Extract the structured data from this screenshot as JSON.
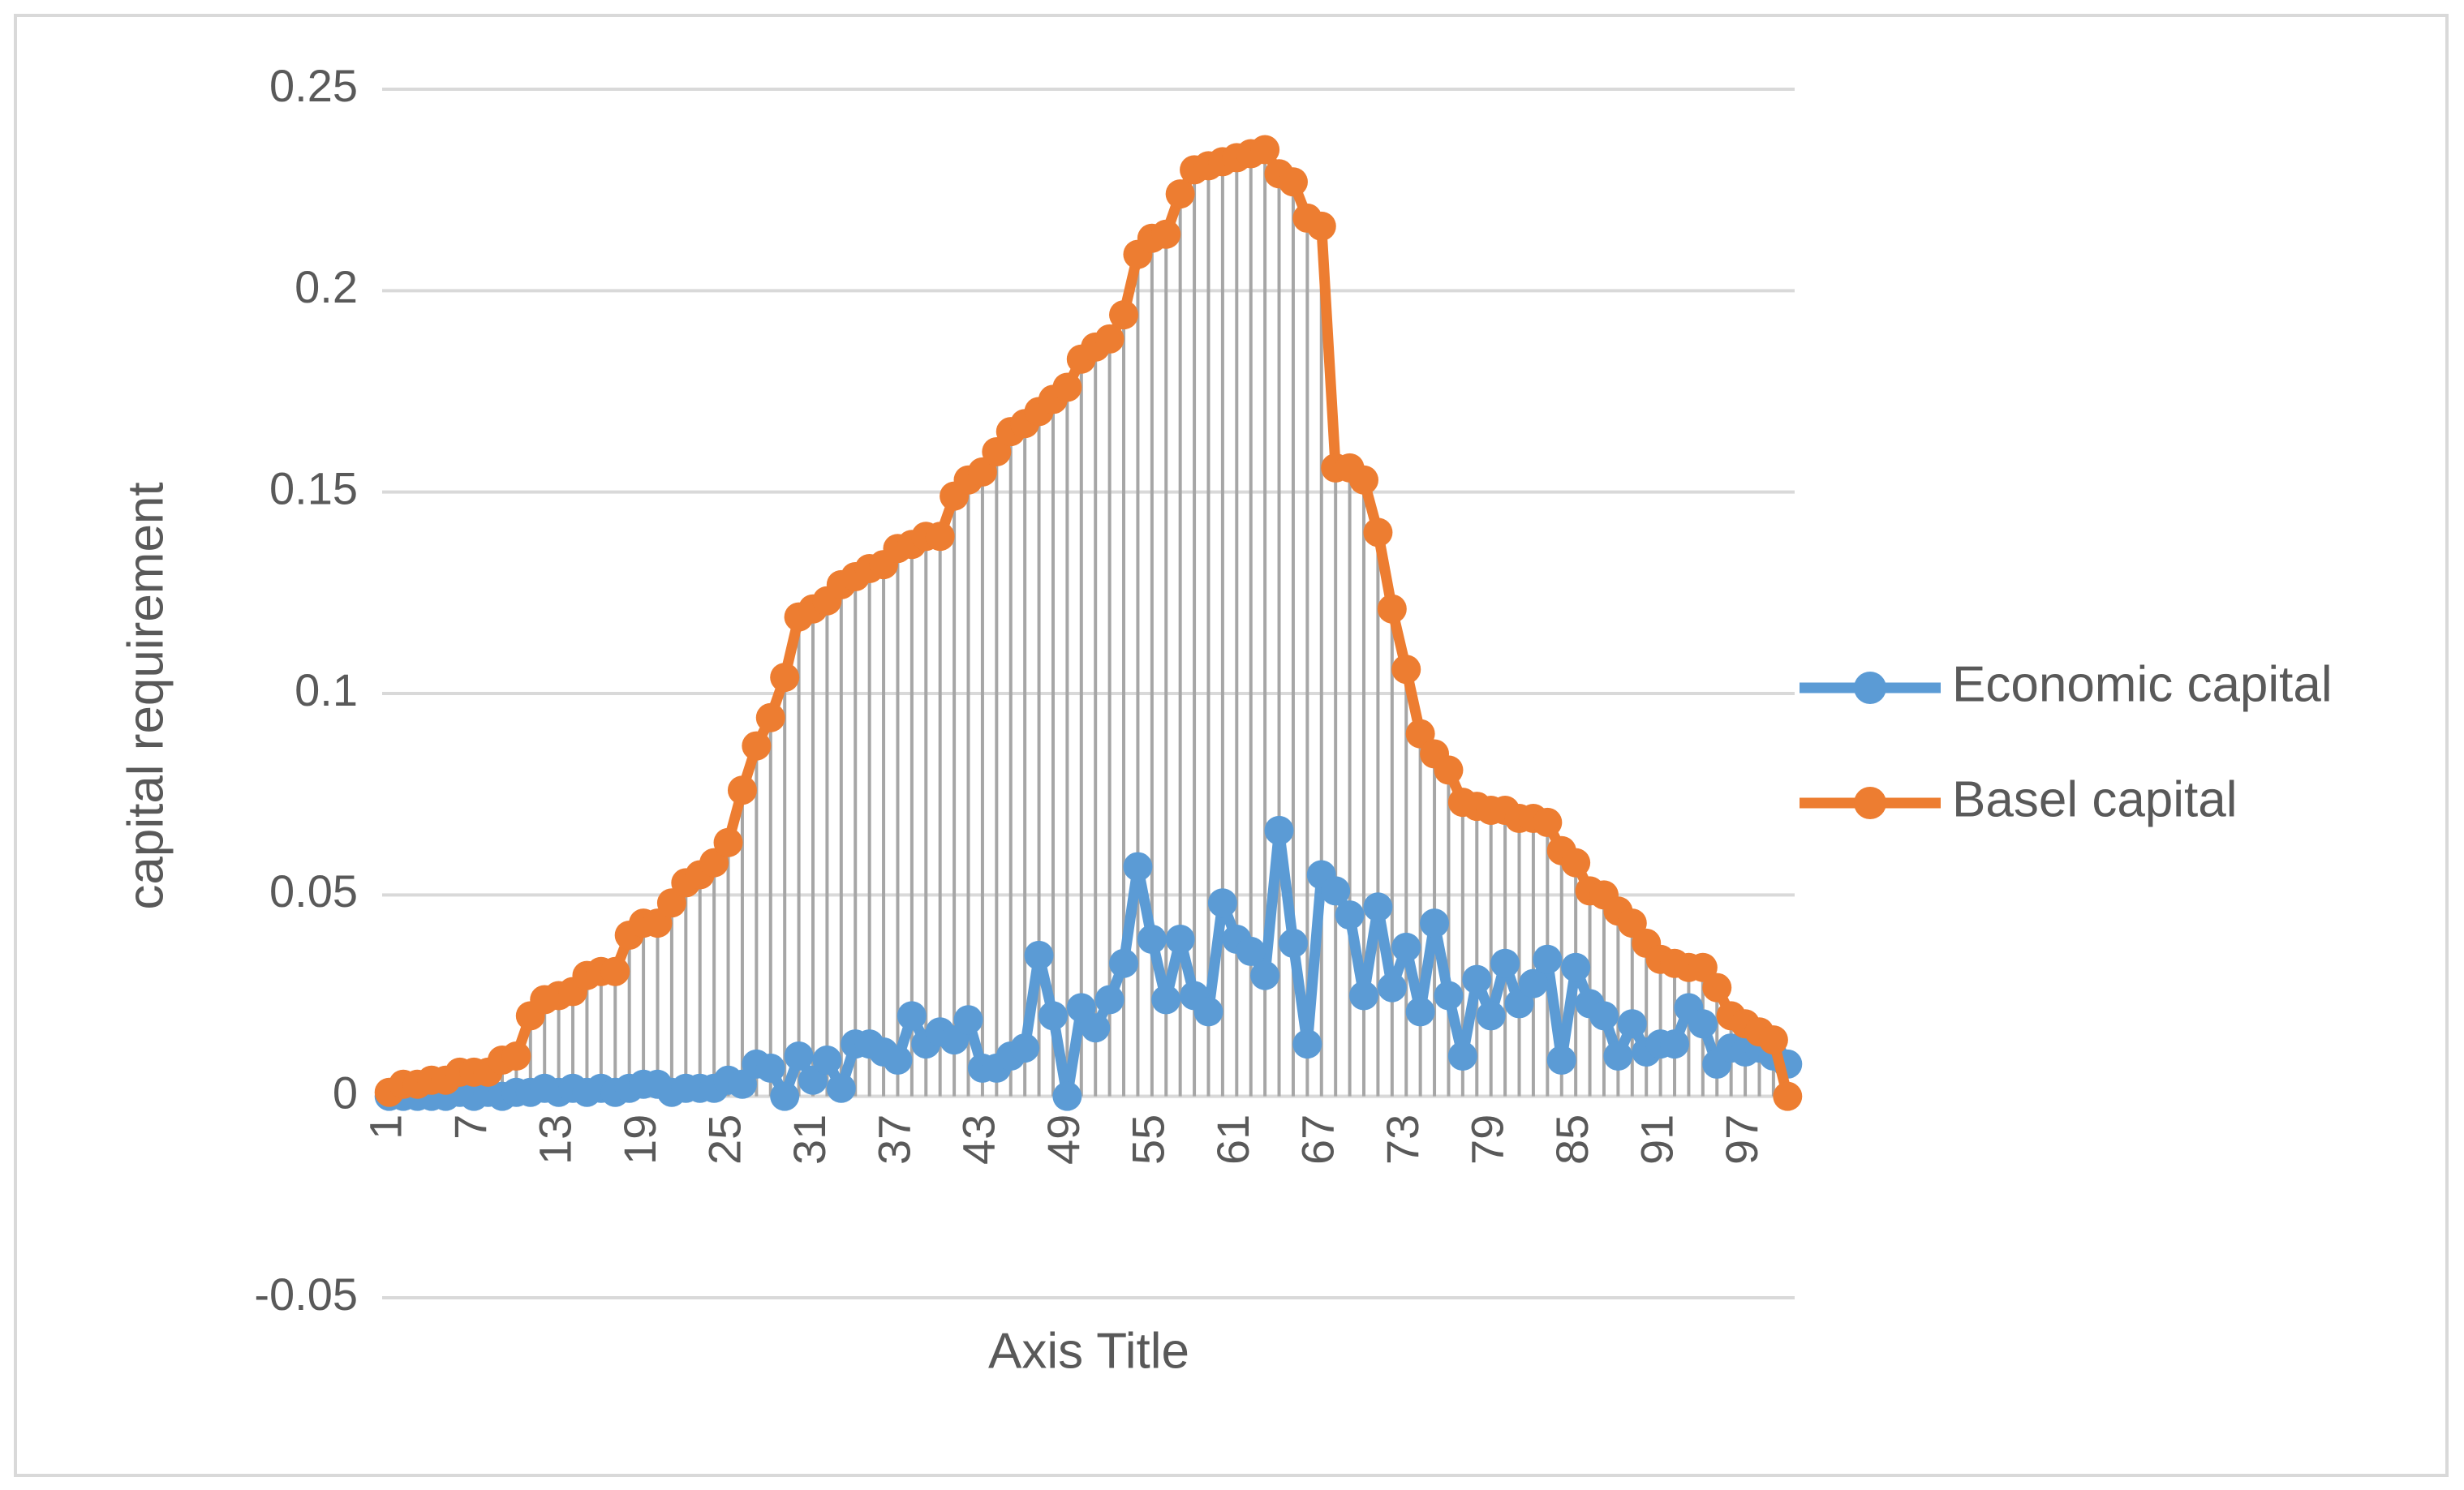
{
  "chart_data": {
    "type": "line",
    "x_label": "Axis Title",
    "y_label": "capital requirement",
    "categories": [
      1,
      null,
      null,
      null,
      null,
      null,
      7,
      null,
      null,
      null,
      null,
      null,
      13,
      null,
      null,
      null,
      null,
      null,
      19,
      null,
      null,
      null,
      null,
      null,
      25,
      null,
      null,
      null,
      null,
      null,
      31,
      null,
      null,
      null,
      null,
      null,
      37,
      null,
      null,
      null,
      null,
      null,
      43,
      null,
      null,
      null,
      null,
      null,
      49,
      null,
      null,
      null,
      null,
      null,
      55,
      null,
      null,
      null,
      null,
      null,
      61,
      null,
      null,
      null,
      null,
      null,
      67,
      null,
      null,
      null,
      null,
      null,
      73,
      null,
      null,
      null,
      null,
      null,
      79,
      null,
      null,
      null,
      null,
      null,
      85,
      null,
      null,
      null,
      null,
      null,
      91,
      null,
      null,
      null,
      null,
      null,
      97,
      null,
      null,
      null
    ],
    "series": [
      {
        "name": "Economic capital",
        "color": "#5b9bd5",
        "values": [
          0,
          0,
          0,
          0,
          0,
          0.001,
          0,
          0.001,
          0,
          0.001,
          0.001,
          0.002,
          0.001,
          0.002,
          0.001,
          0.002,
          0.001,
          0.002,
          0.003,
          0.003,
          0.001,
          0.002,
          0.002,
          0.002,
          0.004,
          0.003,
          0.008,
          0.007,
          0,
          0.01,
          0.004,
          0.009,
          0.002,
          0.013,
          0.013,
          0.011,
          0.009,
          0.02,
          0.013,
          0.016,
          0.014,
          0.019,
          0.007,
          0.007,
          0.01,
          0.012,
          0.035,
          0.02,
          0,
          0.022,
          0.017,
          0.024,
          0.033,
          0.057,
          0.039,
          0.024,
          0.039,
          0.025,
          0.021,
          0.048,
          0.039,
          0.036,
          0.03,
          0.066,
          0.038,
          0.013,
          0.055,
          0.051,
          0.045,
          0.025,
          0.047,
          0.027,
          0.037,
          0.021,
          0.043,
          0.025,
          0.01,
          0.029,
          0.02,
          0.033,
          0.023,
          0.028,
          0.034,
          0.009,
          0.032,
          0.023,
          0.02,
          0.01,
          0.018,
          0.011,
          0.013,
          0.013,
          0.022,
          0.018,
          0.008,
          0.012,
          0.011,
          0.012,
          0.01,
          0.008
        ]
      },
      {
        "name": "Basel capital",
        "color": "#ed7d31",
        "values": [
          0.001,
          0.003,
          0.003,
          0.004,
          0.004,
          0.006,
          0.006,
          0.006,
          0.009,
          0.01,
          0.02,
          0.024,
          0.025,
          0.026,
          0.03,
          0.031,
          0.031,
          0.04,
          0.043,
          0.043,
          0.048,
          0.053,
          0.055,
          0.058,
          0.063,
          0.076,
          0.087,
          0.094,
          0.104,
          0.119,
          0.121,
          0.123,
          0.127,
          0.129,
          0.131,
          0.132,
          0.136,
          0.137,
          0.139,
          0.139,
          0.149,
          0.153,
          0.155,
          0.16,
          0.165,
          0.167,
          0.17,
          0.173,
          0.176,
          0.183,
          0.186,
          0.188,
          0.194,
          0.209,
          0.213,
          0.214,
          0.224,
          0.23,
          0.231,
          0.232,
          0.233,
          0.234,
          0.235,
          0.229,
          0.227,
          0.218,
          0.216,
          0.156,
          0.156,
          0.153,
          0.14,
          0.121,
          0.106,
          0.09,
          0.085,
          0.081,
          0.073,
          0.072,
          0.071,
          0.071,
          0.069,
          0.069,
          0.068,
          0.061,
          0.058,
          0.051,
          0.05,
          0.046,
          0.043,
          0.038,
          0.034,
          0.033,
          0.032,
          0.032,
          0.027,
          0.02,
          0.018,
          0.016,
          0.014,
          0
        ]
      }
    ],
    "ylim": [
      -0.05,
      0.25
    ],
    "yticks": [
      -0.05,
      0,
      0.05,
      0.1,
      0.15,
      0.2,
      0.25
    ],
    "grid": true,
    "drop_lines": true,
    "legend": "right"
  }
}
